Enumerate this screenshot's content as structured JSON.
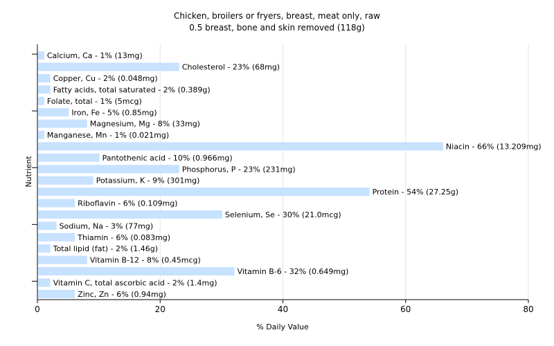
{
  "chart_data": {
    "type": "bar",
    "orientation": "horizontal",
    "title": "Chicken, broilers or fryers, breast, meat only, raw",
    "subtitle": "0.5 breast, bone and skin removed (118g)",
    "xlabel": "% Daily Value",
    "ylabel": "Nutrient",
    "xlim": [
      0,
      80
    ],
    "xticks": [
      0,
      20,
      40,
      60,
      80
    ],
    "grid": true,
    "bar_color": "#c6e2ff",
    "bars": [
      {
        "label": "Calcium, Ca - 1% (13mg)",
        "value": 1
      },
      {
        "label": "Cholesterol - 23% (68mg)",
        "value": 23
      },
      {
        "label": "Copper, Cu - 2% (0.048mg)",
        "value": 2
      },
      {
        "label": "Fatty acids, total saturated - 2% (0.389g)",
        "value": 2
      },
      {
        "label": "Folate, total - 1% (5mcg)",
        "value": 1
      },
      {
        "label": "Iron, Fe - 5% (0.85mg)",
        "value": 5
      },
      {
        "label": "Magnesium, Mg - 8% (33mg)",
        "value": 8
      },
      {
        "label": "Manganese, Mn - 1% (0.021mg)",
        "value": 1
      },
      {
        "label": "Niacin - 66% (13.209mg)",
        "value": 66
      },
      {
        "label": "Pantothenic acid - 10% (0.966mg)",
        "value": 10
      },
      {
        "label": "Phosphorus, P - 23% (231mg)",
        "value": 23
      },
      {
        "label": "Potassium, K - 9% (301mg)",
        "value": 9
      },
      {
        "label": "Protein - 54% (27.25g)",
        "value": 54
      },
      {
        "label": "Riboflavin - 6% (0.109mg)",
        "value": 6
      },
      {
        "label": "Selenium, Se - 30% (21.0mcg)",
        "value": 30
      },
      {
        "label": "Sodium, Na - 3% (77mg)",
        "value": 3
      },
      {
        "label": "Thiamin - 6% (0.083mg)",
        "value": 6
      },
      {
        "label": "Total lipid (fat) - 2% (1.46g)",
        "value": 2
      },
      {
        "label": "Vitamin B-12 - 8% (0.45mcg)",
        "value": 8
      },
      {
        "label": "Vitamin B-6 - 32% (0.649mg)",
        "value": 32
      },
      {
        "label": "Vitamin C, total ascorbic acid - 2% (1.4mg)",
        "value": 2
      },
      {
        "label": "Zinc, Zn - 6% (0.94mg)",
        "value": 6
      }
    ]
  }
}
